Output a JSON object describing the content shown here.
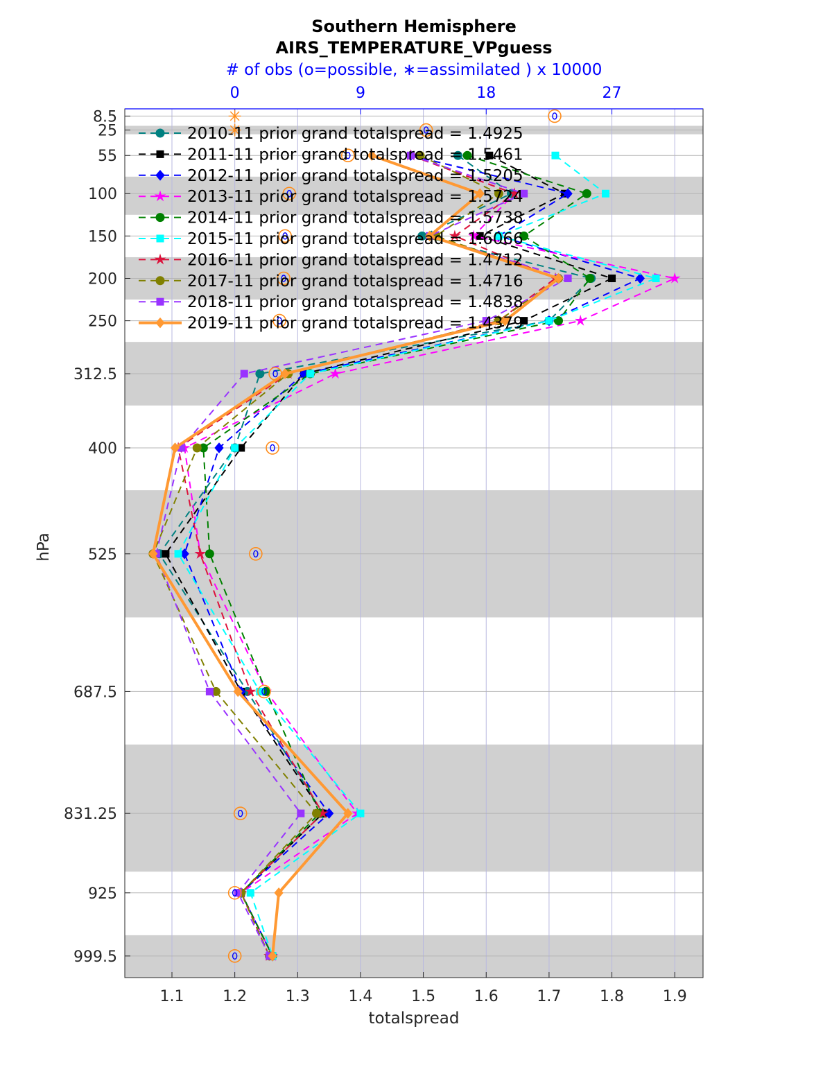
{
  "chart_data": {
    "type": "line",
    "title": "Southern Hemisphere",
    "subtitle": "AIRS_TEMPERATURE_VPguess",
    "xlabel": "totalspread",
    "ylabel": "hPa",
    "top_axis_label": "# of obs (o=possible, ∗=assimilated ) x 10000",
    "top_axis_ticks": [
      0,
      9,
      18,
      27
    ],
    "top_axis_color": "#0000ff",
    "xlim": [
      1.025,
      1.945
    ],
    "xticks": [
      1.1,
      1.2,
      1.3,
      1.4,
      1.5,
      1.6,
      1.7,
      1.8,
      1.9
    ],
    "xtick_labels": [
      "1.1",
      "1.2",
      "1.3",
      "1.4",
      "1.5",
      "1.6",
      "1.7",
      "1.8",
      "1.9"
    ],
    "y_scale": "log",
    "ylim": [
      0,
      1025
    ],
    "levels": [
      8.5,
      25,
      55,
      100,
      150,
      200,
      250,
      312.5,
      400,
      525,
      687.5,
      831.25,
      925,
      999.5
    ],
    "level_labels": [
      "8.5",
      "25",
      "55",
      "100",
      "150",
      "200",
      "250",
      "312.5",
      "400",
      "525",
      "687.5",
      "831.25",
      "925",
      "999.5"
    ],
    "shaded_bands": [
      [
        20,
        30
      ],
      [
        80,
        125
      ],
      [
        175,
        225
      ],
      [
        275,
        350
      ],
      [
        450,
        600
      ],
      [
        750,
        900
      ],
      [
        975,
        1025
      ]
    ],
    "grid": true,
    "legend_position": "top-left",
    "series": [
      {
        "name": "2010-11 prior grand totalspread = 1.4925",
        "color": "#008080",
        "marker": "circle",
        "linestyle": "dashed",
        "values": [
          null,
          null,
          1.555,
          1.64,
          1.498,
          1.767,
          1.7,
          1.24,
          1.2,
          1.08,
          1.22,
          1.34,
          1.21,
          1.26
        ]
      },
      {
        "name": "2011-11 prior grand totalspread = 1.5461",
        "color": "#000000",
        "marker": "square",
        "linestyle": "dashed",
        "values": [
          null,
          null,
          1.605,
          1.725,
          1.59,
          1.8,
          1.66,
          1.31,
          1.21,
          1.09,
          1.21,
          1.34,
          1.21,
          1.26
        ]
      },
      {
        "name": "2012-11 prior grand totalspread = 1.5205",
        "color": "#0000ff",
        "marker": "diamond",
        "linestyle": "dashed",
        "values": [
          null,
          null,
          1.48,
          1.73,
          1.62,
          1.845,
          1.7,
          1.31,
          1.175,
          1.12,
          1.21,
          1.35,
          1.21,
          1.26
        ]
      },
      {
        "name": "2013-11 prior grand totalspread = 1.5724",
        "color": "#ff00ff",
        "marker": "star",
        "linestyle": "dashed",
        "values": [
          null,
          null,
          1.48,
          1.645,
          1.58,
          1.9,
          1.75,
          1.36,
          1.12,
          1.145,
          1.25,
          1.395,
          1.21,
          1.26
        ]
      },
      {
        "name": "2014-11 prior grand totalspread = 1.5738",
        "color": "#008000",
        "marker": "hexagram",
        "linestyle": "dashed",
        "values": [
          null,
          null,
          1.57,
          1.76,
          1.66,
          1.765,
          1.715,
          1.32,
          1.15,
          1.16,
          1.25,
          1.335,
          1.21,
          1.26
        ]
      },
      {
        "name": "2015-11 prior grand totalspread = 1.6066",
        "color": "#00ffff",
        "marker": "square",
        "linestyle": "dashed",
        "values": [
          null,
          null,
          1.71,
          1.79,
          1.62,
          1.87,
          1.7,
          1.32,
          1.2,
          1.11,
          1.24,
          1.4,
          1.225,
          1.26
        ]
      },
      {
        "name": "2016-11 prior grand totalspread = 1.4712",
        "color": "#dc143c",
        "marker": "star",
        "linestyle": "dashed",
        "values": [
          null,
          null,
          1.48,
          1.645,
          1.55,
          1.71,
          1.62,
          1.285,
          1.11,
          1.145,
          1.225,
          1.34,
          1.21,
          1.255
        ]
      },
      {
        "name": "2017-11 prior grand totalspread = 1.4716",
        "color": "#808000",
        "marker": "circle",
        "linestyle": "dashed",
        "values": [
          null,
          null,
          1.495,
          1.62,
          1.52,
          1.715,
          1.62,
          1.285,
          1.14,
          1.07,
          1.17,
          1.33,
          1.21,
          1.255
        ]
      },
      {
        "name": "2018-11 prior grand totalspread = 1.4838",
        "color": "#9933ff",
        "marker": "square",
        "linestyle": "dashed",
        "values": [
          null,
          null,
          1.48,
          1.66,
          1.51,
          1.73,
          1.6,
          1.215,
          1.115,
          1.075,
          1.16,
          1.305,
          1.205,
          1.255
        ]
      },
      {
        "name": "2019-11 prior grand totalspread = 1.4379",
        "color": "#ff9933",
        "marker": "diamond",
        "linestyle": "solid",
        "values": [
          null,
          null,
          1.418,
          1.59,
          1.51,
          1.715,
          1.63,
          1.28,
          1.105,
          1.07,
          1.205,
          1.38,
          1.27,
          1.26
        ]
      }
    ],
    "obs_possible": [
      {
        "level": 8.5,
        "count": 22.9
      },
      {
        "level": 25,
        "count": 13.7
      },
      {
        "level": 55,
        "count": 8.1
      },
      {
        "level": 100,
        "count": 3.9
      },
      {
        "level": 150,
        "count": 3.6
      },
      {
        "level": 200,
        "count": 3.5
      },
      {
        "level": 250,
        "count": 3.2
      },
      {
        "level": 312.5,
        "count": 2.9
      },
      {
        "level": 400,
        "count": 2.7
      },
      {
        "level": 525,
        "count": 1.5
      },
      {
        "level": 687.5,
        "count": 2.1
      },
      {
        "level": 831.25,
        "count": 0.4
      },
      {
        "level": 925,
        "count": 0.0
      },
      {
        "level": 999.5,
        "count": 0.0
      }
    ],
    "obs_assimilated": [
      {
        "level": 8.5,
        "count": 0.0
      },
      {
        "level": 25,
        "count": 0.0
      }
    ],
    "colors": {
      "shade": "#d0d0d0",
      "grid": "#b8b8e0",
      "axis": "#262626",
      "top_axis": "#0000ff",
      "obs_marker": "#ff8c1a",
      "obs_inner": "#0000ff"
    }
  }
}
